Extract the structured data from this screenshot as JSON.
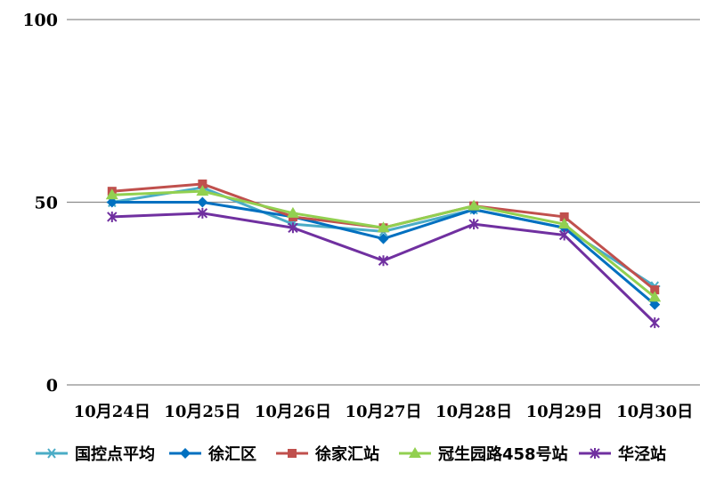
{
  "chart_data": {
    "type": "line",
    "title": "",
    "xlabel": "",
    "ylabel": "",
    "categories": [
      "10月24日",
      "10月25日",
      "10月26日",
      "10月27日",
      "10月28日",
      "10月29日",
      "10月30日"
    ],
    "ylim": [
      0,
      100
    ],
    "yticks": [
      0,
      50,
      100
    ],
    "grid": true,
    "legend": "bottom",
    "series": [
      {
        "name": "国控点平均",
        "color": "#4bacc6",
        "marker": "asterisk",
        "values": [
          50,
          54,
          44,
          42,
          48,
          43,
          27
        ]
      },
      {
        "name": "徐汇区",
        "color": "#0070c0",
        "marker": "diamond",
        "values": [
          50,
          50,
          46,
          40,
          48,
          43,
          22
        ]
      },
      {
        "name": "徐家汇站",
        "color": "#c0504d",
        "marker": "square",
        "values": [
          53,
          55,
          46,
          43,
          49,
          46,
          26
        ]
      },
      {
        "name": "冠生园路458号站",
        "color": "#92d050",
        "marker": "triangle",
        "values": [
          52,
          53,
          47,
          43,
          49,
          44,
          24
        ]
      },
      {
        "name": "华泾站",
        "color": "#7030a0",
        "marker": "star",
        "values": [
          46,
          47,
          43,
          34,
          44,
          41,
          17
        ]
      }
    ]
  }
}
